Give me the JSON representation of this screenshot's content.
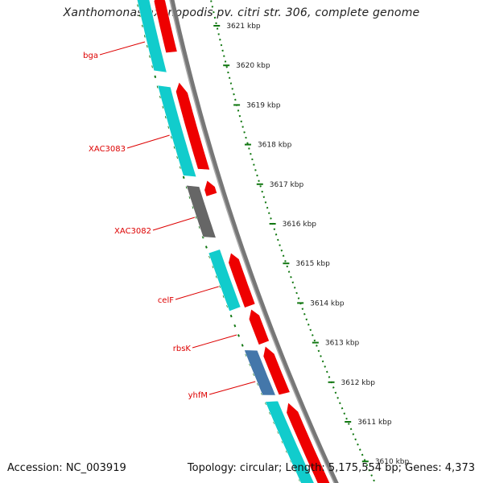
{
  "title": "Xanthomonas axonopodis pv. citri str. 306, complete genome",
  "footer": {
    "accession": "Accession: NC_003919",
    "summary": "Topology: circular; Length: 5,175,554 bp; Genes: 4,373"
  },
  "colors": {
    "label": "#dd0000",
    "forward": "#ee0000",
    "reverse": "#11cccc",
    "gray_feature": "#666666",
    "blue_feature": "#4477aa",
    "tick": "#117711",
    "backbone": "#777777"
  },
  "ruler": {
    "unit": "kbp",
    "labels": [
      "3621 kbp",
      "3620 kbp",
      "3619 kbp",
      "3618 kbp",
      "3617 kbp",
      "3616 kbp",
      "3615 kbp",
      "3614 kbp",
      "3613 kbp",
      "3612 kbp",
      "3611 kbp",
      "3610 kbp"
    ]
  },
  "gene_labels": [
    "bga",
    "XAC3083",
    "XAC3082",
    "celF",
    "rbsK",
    "yhfM"
  ],
  "features": [
    {
      "strand": "forward",
      "color": "forward"
    },
    {
      "strand": "reverse",
      "color": "reverse"
    },
    {
      "strand": "forward",
      "color": "forward"
    },
    {
      "strand": "reverse",
      "color": "reverse"
    },
    {
      "strand": "forward",
      "color": "forward"
    },
    {
      "strand": "reverse",
      "color": "gray_feature"
    },
    {
      "strand": "forward",
      "color": "forward"
    },
    {
      "strand": "reverse",
      "color": "reverse"
    },
    {
      "strand": "forward",
      "color": "forward"
    },
    {
      "strand": "forward",
      "color": "forward"
    },
    {
      "strand": "reverse",
      "color": "blue_feature"
    },
    {
      "strand": "reverse",
      "color": "reverse"
    },
    {
      "strand": "forward",
      "color": "forward"
    }
  ]
}
